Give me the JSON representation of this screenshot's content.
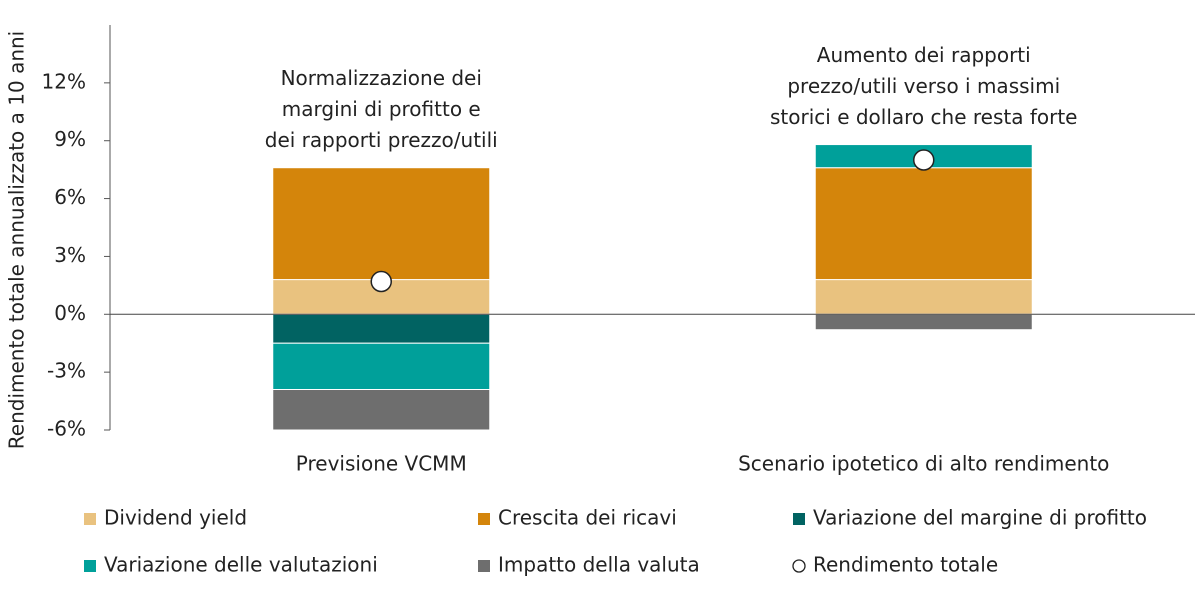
{
  "chart_data": {
    "type": "stacked_bar",
    "y_label": "Rendimento totale annualizzato a 10 anni",
    "categories": [
      "Previsione VCMM",
      "Scenario ipotetico di alto rendimento"
    ],
    "annotations": [
      [
        "Normalizzazione dei",
        "margini di profitto e",
        "dei rapporti prezzo/utili"
      ],
      [
        "Aumento dei rapporti",
        "prezzo/utili verso i massimi",
        "storici e dollaro che resta forte"
      ]
    ],
    "series": [
      {
        "name": "Dividend yield",
        "color": "#e9c27f",
        "values": [
          1.8,
          1.8
        ]
      },
      {
        "name": "Crescita dei ricavi",
        "color": "#d4850b",
        "values": [
          5.8,
          5.8
        ]
      },
      {
        "name": "Variazione del margine di profitto",
        "color": "#016362",
        "values": [
          -1.5,
          0
        ]
      },
      {
        "name": "Variazione delle valutazioni",
        "color": "#00a09a",
        "values": [
          -2.4,
          1.2
        ]
      },
      {
        "name": "Impatto della valuta",
        "color": "#6e6e6e",
        "values": [
          -2.1,
          -0.8
        ]
      }
    ],
    "total": {
      "name": "Rendimento totale",
      "values": [
        1.7,
        8.0
      ]
    },
    "ylim": [
      -6,
      15
    ],
    "yticks": [
      {
        "value": -6,
        "label": "-6%"
      },
      {
        "value": -3,
        "label": "-3%"
      },
      {
        "value": 0,
        "label": "0%"
      },
      {
        "value": 3,
        "label": "3%"
      },
      {
        "value": 6,
        "label": "6%"
      },
      {
        "value": 9,
        "label": "9%"
      },
      {
        "value": 12,
        "label": "12%"
      }
    ]
  }
}
